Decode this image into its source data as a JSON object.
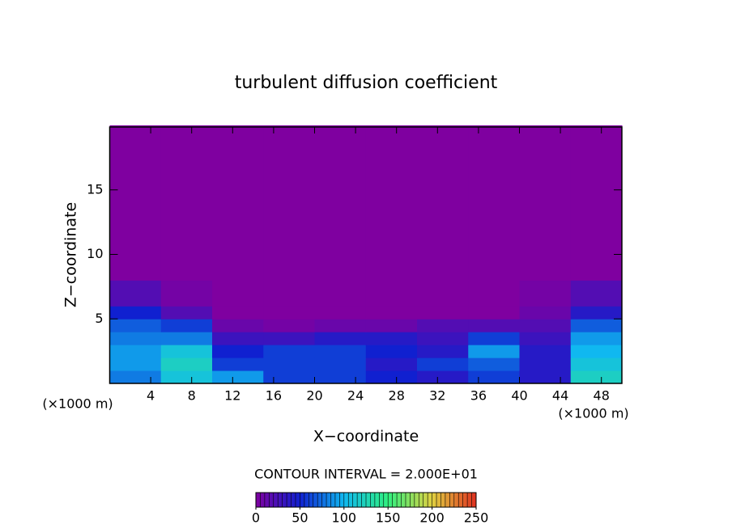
{
  "chart_data": {
    "type": "heatmap",
    "title": "turbulent diffusion coefficient",
    "x_label": "X−coordinate",
    "y_label": "Z−coordinate",
    "x_unit_label": "(×1000 m)",
    "x_unit_label_right": "(×1000 m)",
    "note": "CONTOUR INTERVAL = 2.000E+01",
    "xlim": [
      0,
      50
    ],
    "ylim": [
      0,
      20
    ],
    "xticks": [
      4,
      8,
      12,
      16,
      20,
      24,
      28,
      32,
      36,
      40,
      44,
      48
    ],
    "yticks": [
      5,
      10,
      15
    ],
    "x_edges": [
      0,
      5,
      10,
      15,
      20,
      25,
      30,
      35,
      40,
      45,
      50
    ],
    "z_edges": [
      0,
      1,
      2,
      3,
      4,
      5,
      6,
      8,
      20
    ],
    "values": [
      [
        80,
        110,
        90,
        60,
        60,
        50,
        40,
        60,
        40,
        120
      ],
      [
        90,
        120,
        60,
        60,
        60,
        40,
        60,
        70,
        40,
        110
      ],
      [
        90,
        110,
        50,
        60,
        60,
        50,
        40,
        90,
        40,
        100
      ],
      [
        80,
        80,
        30,
        30,
        40,
        40,
        30,
        60,
        30,
        90
      ],
      [
        70,
        60,
        10,
        5,
        10,
        10,
        20,
        20,
        20,
        70
      ],
      [
        50,
        20,
        0,
        0,
        0,
        0,
        0,
        0,
        10,
        40
      ],
      [
        20,
        5,
        0,
        0,
        0,
        0,
        0,
        0,
        5,
        20
      ],
      [
        0,
        0,
        0,
        0,
        0,
        0,
        0,
        0,
        0,
        0
      ]
    ],
    "clim": [
      0,
      250
    ],
    "colorbar_ticks": [
      0,
      50,
      100,
      150,
      200,
      250
    ],
    "colormap": [
      "#7f00a0",
      "#1020d0",
      "#10b8f0",
      "#30f080",
      "#e0d040",
      "#e03020"
    ]
  }
}
